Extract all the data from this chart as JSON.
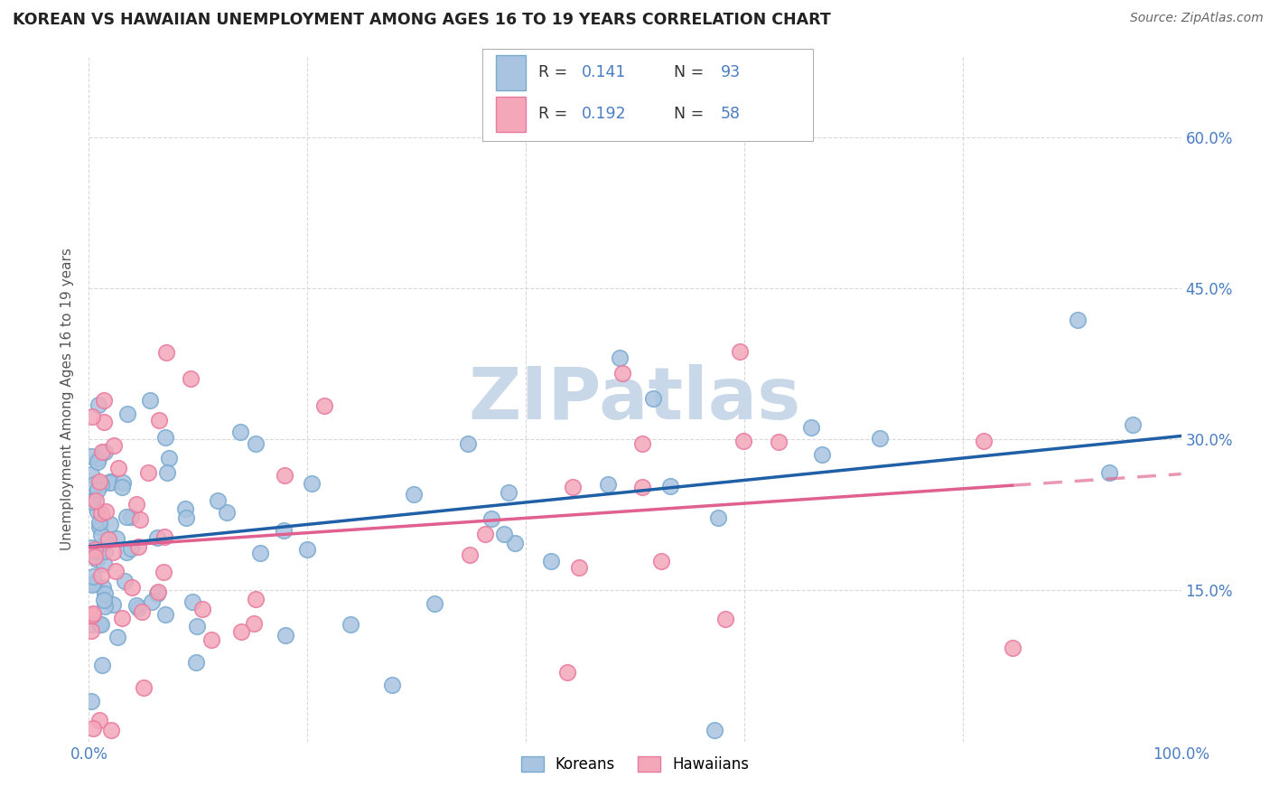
{
  "title": "KOREAN VS HAWAIIAN UNEMPLOYMENT AMONG AGES 16 TO 19 YEARS CORRELATION CHART",
  "source": "Source: ZipAtlas.com",
  "ylabel": "Unemployment Among Ages 16 to 19 years",
  "xlim": [
    0,
    1.0
  ],
  "ylim": [
    0,
    0.68
  ],
  "xticks": [
    0.0,
    0.2,
    0.4,
    0.6,
    0.8,
    1.0
  ],
  "xticklabels": [
    "0.0%",
    "",
    "",
    "",
    "",
    "100.0%"
  ],
  "yticks": [
    0.15,
    0.3,
    0.45,
    0.6
  ],
  "yticklabels": [
    "15.0%",
    "30.0%",
    "45.0%",
    "60.0%"
  ],
  "korean_color": "#a8c4e0",
  "hawaiian_color": "#f4a7b9",
  "korean_edge_color": "#7aaad0",
  "hawaiian_edge_color": "#e87aa0",
  "korean_line_color": "#1f5fa6",
  "hawaiian_line_color": "#e06090",
  "watermark": "ZIPatlas",
  "watermark_color": "#c8d8e8",
  "tick_color": "#4a7dc4",
  "title_color": "#222222",
  "source_color": "#666666",
  "grid_color": "#d8d8d8",
  "ylabel_color": "#555555",
  "legend_r_color": "#333333",
  "legend_n_color": "#4a7dc4",
  "legend_border_color": "#aaaaaa",
  "korean_intercept": 0.205,
  "korean_slope": 0.072,
  "hawaiian_intercept": 0.185,
  "hawaiian_slope": 0.145,
  "korean_seed": 77,
  "hawaiian_seed": 44
}
